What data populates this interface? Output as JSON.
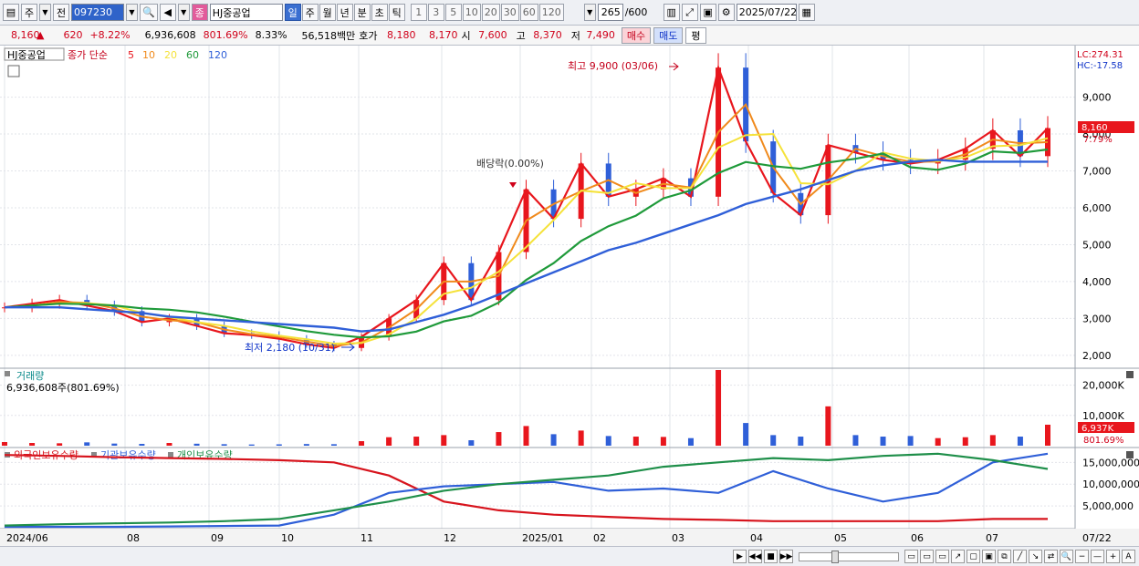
{
  "toolbar": {
    "period_type": "주",
    "all_label": "전",
    "code": "097230",
    "name": "HJ중공업",
    "tabs": [
      "일",
      "주",
      "월",
      "년",
      "분",
      "초",
      "틱"
    ],
    "active_tab": "일",
    "intervals": [
      "1",
      "3",
      "5",
      "10",
      "20",
      "30",
      "60",
      "120"
    ],
    "count": "265",
    "count_total": "/600",
    "date": "2025/07/22"
  },
  "quote": {
    "price": "8,160",
    "change_arrow": "▲",
    "change": "620",
    "change_pct": "+8.22%",
    "volume": "6,936,608",
    "volume_ratio": "801.69%",
    "turnover": "8.33%",
    "amount": "56,518백만",
    "hoga_label": "호가",
    "ask": "8,180",
    "bid": "8,170",
    "open_label": "시",
    "open": "7,600",
    "high_label": "고",
    "high": "8,370",
    "low_label": "저",
    "low": "7,490",
    "buy_label": "매수",
    "sell_label": "매도",
    "eval_label": "평"
  },
  "price_panel": {
    "stock_label": "HJ중공업",
    "indicator_label": "종가 단순",
    "ma_periods": [
      "5",
      "10",
      "20",
      "60",
      "120"
    ],
    "ma_colors": [
      "#e8161d",
      "#f08a1c",
      "#f5e23a",
      "#1f9a3a",
      "#2f5fd8"
    ],
    "lc": "LC:274.31",
    "hc": "HC:-17.58",
    "high_annot": "최고 9,900 (03/06)",
    "low_annot": "최저 2,180 (10/31)",
    "div_annot": "배당락(0.00%)",
    "current_price_tag": "8,160",
    "current_pct_tag": "7.79%"
  },
  "volume_panel": {
    "title": "거래량",
    "value": "6,936,608주(801.69%)",
    "last_tag": "6,937K",
    "last_pct": "801.69%"
  },
  "holdings_panel": {
    "legends": [
      "외국인보유수량",
      "기관보유수량",
      "개인보유수량"
    ],
    "colors": [
      "#d7141d",
      "#2f5fd8",
      "#1f8f4a"
    ]
  },
  "x_axis": [
    "2024/06",
    "08",
    "09",
    "10",
    "11",
    "12",
    "2025/01",
    "02",
    "03",
    "04",
    "05",
    "06",
    "07",
    "07/22"
  ],
  "chart_data": [
    {
      "type": "line",
      "panel": "price",
      "ylim": [
        1700,
        10200
      ],
      "y_ticks": [
        "2,000",
        "3,000",
        "4,000",
        "5,000",
        "6,000",
        "7,000",
        "8,000",
        "9,000"
      ],
      "x_month_labels": [
        "2024/06",
        "08",
        "09",
        "10",
        "11",
        "12",
        "2025/01",
        "02",
        "03",
        "04",
        "05",
        "06",
        "07"
      ],
      "close": [
        3300,
        3400,
        3500,
        3350,
        3200,
        2900,
        3000,
        2800,
        2600,
        2550,
        2450,
        2300,
        2200,
        2500,
        3000,
        3500,
        4500,
        3500,
        4800,
        6500,
        5700,
        7200,
        6300,
        6500,
        6800,
        6300,
        9800,
        7800,
        6400,
        5800,
        7700,
        7500,
        7300,
        7200,
        7300,
        7600,
        8100,
        7400,
        8160
      ],
      "ma120": [
        3300,
        3300,
        3300,
        3250,
        3200,
        3150,
        3050,
        3000,
        2950,
        2900,
        2850,
        2800,
        2750,
        2650,
        2700,
        2900,
        3100,
        3350,
        3650,
        3950,
        4250,
        4550,
        4850,
        5050,
        5300,
        5550,
        5800,
        6100,
        6300,
        6500,
        6750,
        7000,
        7150,
        7250,
        7300,
        7250,
        7250,
        7250,
        7250
      ],
      "annotations": {
        "high": 9900,
        "low": 2180
      }
    },
    {
      "type": "bar",
      "panel": "volume",
      "ylim": [
        0,
        25000
      ],
      "y_ticks": [
        "10,000K",
        "20,000K"
      ],
      "values_k": [
        1200,
        900,
        800,
        1100,
        700,
        600,
        900,
        650,
        500,
        400,
        450,
        550,
        500,
        1500,
        2800,
        3000,
        3500,
        1800,
        4500,
        6500,
        3800,
        5000,
        3200,
        3000,
        2900,
        2500,
        25000,
        7500,
        3500,
        3000,
        13000,
        3500,
        3000,
        3200,
        2500,
        2800,
        3500,
        3000,
        6937
      ]
    },
    {
      "type": "line",
      "panel": "holdings",
      "ylim": [
        0,
        18000000
      ],
      "y_ticks": [
        "5,000,000",
        "10,000,000",
        "15,000,000"
      ],
      "series": [
        {
          "name": "외국인보유수량",
          "values": [
            16700000,
            16500000,
            16200000,
            16000000,
            15800000,
            15500000,
            15000000,
            12000000,
            6000000,
            4000000,
            3000000,
            2500000,
            2000000,
            1800000,
            1500000,
            1500000,
            1500000,
            1500000,
            2000000,
            2000000
          ]
        },
        {
          "name": "기관보유수량",
          "values": [
            200000,
            200000,
            200000,
            300000,
            400000,
            500000,
            3000000,
            8000000,
            9500000,
            10000000,
            10500000,
            8500000,
            9000000,
            8000000,
            13000000,
            9000000,
            6000000,
            8000000,
            15000000,
            17000000
          ]
        },
        {
          "name": "개인보유수량",
          "values": [
            500000,
            800000,
            1000000,
            1200000,
            1500000,
            2000000,
            4000000,
            6000000,
            8500000,
            10000000,
            11000000,
            12000000,
            14000000,
            15000000,
            16000000,
            15500000,
            16500000,
            17000000,
            15500000,
            13500000
          ]
        }
      ]
    }
  ]
}
